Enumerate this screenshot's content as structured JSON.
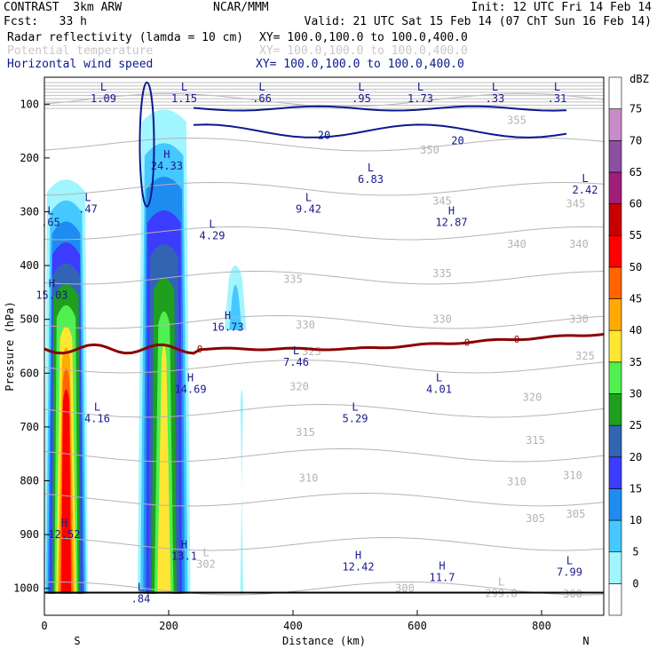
{
  "header": {
    "line1_left": "CONTRAST  3km ARW",
    "line1_center": "NCAR/MMM",
    "line1_right": "Init: 12 UTC Fri 14 Feb 14",
    "line2_left": "Fcst:   33 h",
    "line2_right": "Valid: 21 UTC Sat 15 Feb 14 (07 ChT Sun 16 Feb 14)",
    "fields": [
      {
        "label": "Radar reflectivity (lamda = 10 cm)",
        "xy": "XY= 100.0,100.0 to 100.0,400.0",
        "color": "#000000"
      },
      {
        "label": "Potential temperature",
        "xy": "XY= 100.0,100.0 to 100.0,400.0",
        "color": "#c8c8c8"
      },
      {
        "label": "Horizontal wind speed",
        "xy": "XY= 100.0,100.0 to 100.0,400.0",
        "color": "#0a1a8c"
      }
    ]
  },
  "chart_data": {
    "type": "heatmap",
    "title": "",
    "xlabel": "Distance (km)",
    "ylabel": "Pressure (hPa)",
    "xlim": [
      0,
      900
    ],
    "ylim": [
      1050,
      50
    ],
    "x_ticks": [
      0,
      200,
      400,
      600,
      800
    ],
    "y_ticks": [
      100,
      200,
      300,
      400,
      500,
      600,
      700,
      800,
      900,
      1000
    ],
    "x_end_labels": {
      "left": "S",
      "right": "N"
    },
    "colorbar": {
      "unit": "dBZ",
      "levels": [
        0,
        5,
        10,
        15,
        20,
        25,
        30,
        35,
        40,
        45,
        50,
        55,
        60,
        65,
        70,
        75
      ],
      "colors": [
        "#ffffff",
        "#a0f5ff",
        "#45c8ff",
        "#1e8cf0",
        "#3c3cff",
        "#3264b4",
        "#1ea01e",
        "#50f050",
        "#ffe632",
        "#ffaa00",
        "#ff6400",
        "#ff0000",
        "#c80000",
        "#a01e78",
        "#8c50a0",
        "#c88cc8",
        "#ffffff"
      ]
    },
    "reflectivity_cells": [
      {
        "x_range": [
          0,
          70
        ],
        "p_range": [
          1010,
          230
        ],
        "max_dbz": 55
      },
      {
        "x_range": [
          150,
          235
        ],
        "p_range": [
          1010,
          100
        ],
        "max_dbz": 40
      },
      {
        "x_range": [
          290,
          325
        ],
        "p_range": [
          520,
          390
        ],
        "max_dbz": 10
      },
      {
        "x_range": [
          315,
          320
        ],
        "p_range": [
          1010,
          620
        ],
        "max_dbz": 5
      }
    ],
    "theta_contour_labels": [
      {
        "text": "355",
        "x": 760,
        "p": 130
      },
      {
        "text": "350",
        "x": 620,
        "p": 185
      },
      {
        "text": "345",
        "x": 640,
        "p": 280
      },
      {
        "text": "345",
        "x": 855,
        "p": 285
      },
      {
        "text": "340",
        "x": 760,
        "p": 360
      },
      {
        "text": "340",
        "x": 860,
        "p": 360
      },
      {
        "text": "335",
        "x": 400,
        "p": 425
      },
      {
        "text": "335",
        "x": 640,
        "p": 415
      },
      {
        "text": "330",
        "x": 420,
        "p": 510
      },
      {
        "text": "330",
        "x": 640,
        "p": 500
      },
      {
        "text": "330",
        "x": 860,
        "p": 500
      },
      {
        "text": "325",
        "x": 430,
        "p": 560
      },
      {
        "text": "325",
        "x": 870,
        "p": 568
      },
      {
        "text": "320",
        "x": 410,
        "p": 625
      },
      {
        "text": "320",
        "x": 785,
        "p": 645
      },
      {
        "text": "315",
        "x": 420,
        "p": 710
      },
      {
        "text": "315",
        "x": 790,
        "p": 725
      },
      {
        "text": "310",
        "x": 425,
        "p": 795
      },
      {
        "text": "310",
        "x": 760,
        "p": 802
      },
      {
        "text": "310",
        "x": 850,
        "p": 790
      },
      {
        "text": "305",
        "x": 790,
        "p": 870
      },
      {
        "text": "305",
        "x": 855,
        "p": 862
      },
      {
        "text": "300",
        "x": 580,
        "p": 1000
      },
      {
        "text": "300",
        "x": 850,
        "p": 1010
      }
    ],
    "theta_range": [
      299.8,
      355
    ],
    "wind_speed_contours": [
      {
        "level": 20,
        "label": "20",
        "label_x": 450,
        "label_p": 158
      },
      {
        "level": 20,
        "label": "20",
        "label_x": 665,
        "label_p": 168
      }
    ],
    "freezing_level": {
      "label": "0",
      "p_mean": 555
    },
    "extrema": [
      {
        "kind": "L",
        "value": "1.09",
        "x": 95,
        "p": 75
      },
      {
        "kind": "L",
        "value": "1.15",
        "x": 225,
        "p": 75
      },
      {
        "kind": "L",
        "value": ".66",
        "x": 350,
        "p": 75
      },
      {
        "kind": "L",
        "value": ".95",
        "x": 510,
        "p": 75
      },
      {
        "kind": "L",
        "value": "1.73",
        "x": 605,
        "p": 75
      },
      {
        "kind": "L",
        "value": ".33",
        "x": 725,
        "p": 75
      },
      {
        "kind": "L",
        "value": ".31",
        "x": 825,
        "p": 75
      },
      {
        "kind": "H",
        "value": "24.33",
        "x": 197,
        "p": 200
      },
      {
        "kind": "L",
        "value": "6.83",
        "x": 525,
        "p": 225
      },
      {
        "kind": "L",
        "value": "2.42",
        "x": 870,
        "p": 245
      },
      {
        "kind": "L",
        "value": ".47",
        "x": 70,
        "p": 280
      },
      {
        "kind": "L",
        "value": "9.42",
        "x": 425,
        "p": 280
      },
      {
        "kind": "H",
        "value": "12.87",
        "x": 655,
        "p": 305
      },
      {
        "kind": "L",
        "value": ".65",
        "x": 10,
        "p": 305
      },
      {
        "kind": "L",
        "value": "4.29",
        "x": 270,
        "p": 330
      },
      {
        "kind": "H",
        "value": "15.03",
        "x": 12,
        "p": 440
      },
      {
        "kind": "H",
        "value": "16.73",
        "x": 295,
        "p": 500
      },
      {
        "kind": "L",
        "value": "7.46",
        "x": 405,
        "p": 565
      },
      {
        "kind": "H",
        "value": "14.69",
        "x": 235,
        "p": 615
      },
      {
        "kind": "L",
        "value": "4.01",
        "x": 635,
        "p": 615
      },
      {
        "kind": "L",
        "value": "4.16",
        "x": 85,
        "p": 670
      },
      {
        "kind": "L",
        "value": "5.29",
        "x": 500,
        "p": 670
      },
      {
        "kind": "H",
        "value": "12.52",
        "x": 32,
        "p": 885
      },
      {
        "kind": "H",
        "value": "13.1",
        "x": 225,
        "p": 925
      },
      {
        "kind": "L",
        "value": "302",
        "x": 260,
        "p": 940,
        "gray": true
      },
      {
        "kind": "H",
        "value": "12.42",
        "x": 505,
        "p": 945
      },
      {
        "kind": "H",
        "value": "11.7",
        "x": 640,
        "p": 965
      },
      {
        "kind": "L",
        "value": "7.99",
        "x": 845,
        "p": 955
      },
      {
        "kind": "L",
        "value": "299.8",
        "x": 735,
        "p": 995,
        "gray": true
      },
      {
        "kind": "L",
        "value": ".84",
        "x": 155,
        "p": 1005
      }
    ]
  }
}
